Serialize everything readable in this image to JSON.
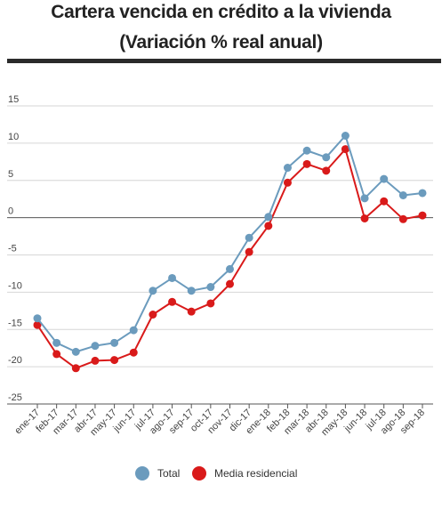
{
  "header": {
    "title_line1": "Cartera vencida en crédito a la vivienda",
    "title_line2": "(Variación % real anual)"
  },
  "legend": {
    "total_label": "Total",
    "media_label": "Media residencial"
  },
  "colors": {
    "total": "#6b9bbd",
    "media": "#d91a1a",
    "grid": "#d6d6d6",
    "axis": "#555555"
  },
  "chart_data": {
    "type": "line",
    "categories": [
      "ene-17",
      "feb-17",
      "mar-17",
      "abr-17",
      "may-17",
      "jun-17",
      "jul-17",
      "ago-17",
      "sep-17",
      "oct-17",
      "nov-17",
      "dic-17",
      "ene-18",
      "feb-18",
      "mar-18",
      "abr-18",
      "may-18",
      "jun-18",
      "jul-18",
      "ago-18",
      "sep-18"
    ],
    "series": [
      {
        "name": "Total",
        "values": [
          -13.5,
          -16.8,
          -18.0,
          -17.2,
          -16.8,
          -15.1,
          -9.8,
          -8.1,
          -9.8,
          -9.3,
          -6.9,
          -2.7,
          0.1,
          6.7,
          9.0,
          8.1,
          11.0,
          2.6,
          5.2,
          3.0,
          3.3
        ]
      },
      {
        "name": "Media residencial",
        "values": [
          -14.4,
          -18.3,
          -20.2,
          -19.2,
          -19.1,
          -18.1,
          -13.0,
          -11.3,
          -12.6,
          -11.5,
          -8.9,
          -4.6,
          -1.1,
          4.7,
          7.2,
          6.3,
          9.2,
          -0.1,
          2.2,
          -0.2,
          0.3
        ]
      }
    ],
    "yticks": [
      15,
      10,
      5,
      0,
      -5,
      -10,
      -15,
      -20,
      -25
    ],
    "ylim": [
      -25,
      15
    ],
    "grid": true,
    "legend_position": "bottom"
  }
}
